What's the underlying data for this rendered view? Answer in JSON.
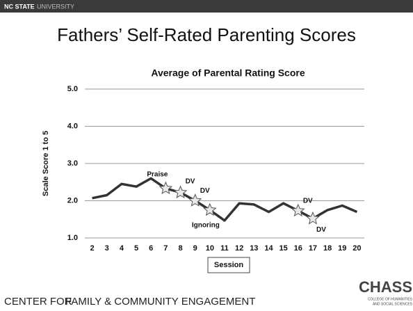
{
  "header": {
    "brand_bold": "NC STATE",
    "brand_light": "UNIVERSITY"
  },
  "slide_title": "Fathers’ Self-Rated Parenting Scores",
  "footer": {
    "light": "CENTER FOR",
    "bold": "FAMILY & COMMUNITY ENGAGEMENT"
  },
  "logo": {
    "name": "CHASS",
    "line1": "COLLEGE OF HUMANITIES",
    "line2": "AND SOCIAL SCIENCES"
  },
  "chart_data": {
    "type": "line",
    "title": "Average of Parental Rating Score",
    "x_label": "Session",
    "y_label": "Scale Score 1 to 5",
    "categories": [
      2,
      3,
      4,
      5,
      6,
      7,
      8,
      9,
      10,
      11,
      12,
      13,
      14,
      15,
      16,
      17,
      18,
      19,
      20
    ],
    "values": [
      2.07,
      2.15,
      2.45,
      2.38,
      2.6,
      2.33,
      2.22,
      2.0,
      1.75,
      1.47,
      1.93,
      1.9,
      1.7,
      1.93,
      1.73,
      1.52,
      1.75,
      1.87,
      1.7
    ],
    "color": "#333333",
    "ylim": [
      1,
      5
    ],
    "yticks": [
      {
        "value": 1,
        "label": "1.0"
      },
      {
        "value": 2,
        "label": "2.0"
      },
      {
        "value": 3,
        "label": "3.0"
      },
      {
        "value": 4,
        "label": "4.0"
      },
      {
        "value": 5,
        "label": "5.0"
      }
    ],
    "grid": true,
    "annotations": [
      {
        "text": "Praise",
        "category": 7
      },
      {
        "text": "DV",
        "category": 8
      },
      {
        "text": "DV",
        "category": 9
      },
      {
        "text": "Ignoring",
        "category": 10
      },
      {
        "text": "DV",
        "category": 16
      },
      {
        "text": "DV",
        "category": 17
      }
    ]
  }
}
